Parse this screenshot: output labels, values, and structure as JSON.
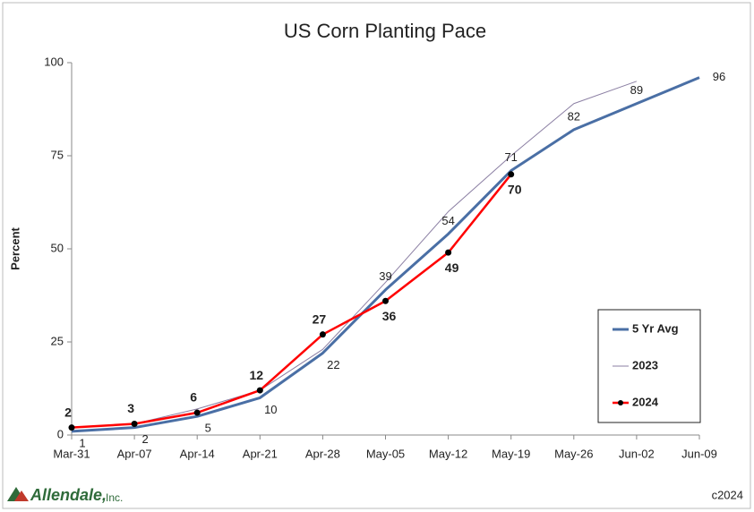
{
  "chart_data": {
    "type": "line",
    "title": "US Corn Planting Pace",
    "y_label": "Percent",
    "categories": [
      "Mar-31",
      "Apr-07",
      "Apr-14",
      "Apr-21",
      "Apr-28",
      "May-05",
      "May-12",
      "May-19",
      "May-26",
      "Jun-02",
      "Jun-09"
    ],
    "series": [
      {
        "name": "5 Yr Avg",
        "color": "#4a6fa5",
        "values": [
          1,
          2,
          5,
          10,
          22,
          39,
          54,
          71,
          82,
          89,
          96
        ]
      },
      {
        "name": "2023",
        "color": "#8b7fa3",
        "values": [
          2,
          3,
          7,
          12,
          23,
          41,
          60,
          75,
          89,
          95,
          null
        ]
      },
      {
        "name": "2024",
        "color": "#ff0000",
        "values": [
          2,
          3,
          6,
          12,
          27,
          36,
          49,
          70,
          null,
          null,
          null
        ]
      }
    ],
    "ylim": [
      0,
      100
    ],
    "yticks": [
      0,
      25,
      50,
      75,
      100
    ],
    "grid": false,
    "legend": "lower right",
    "logo_name": "Allendale,",
    "logo_suffix": "Inc.",
    "copyright": "c2024"
  }
}
